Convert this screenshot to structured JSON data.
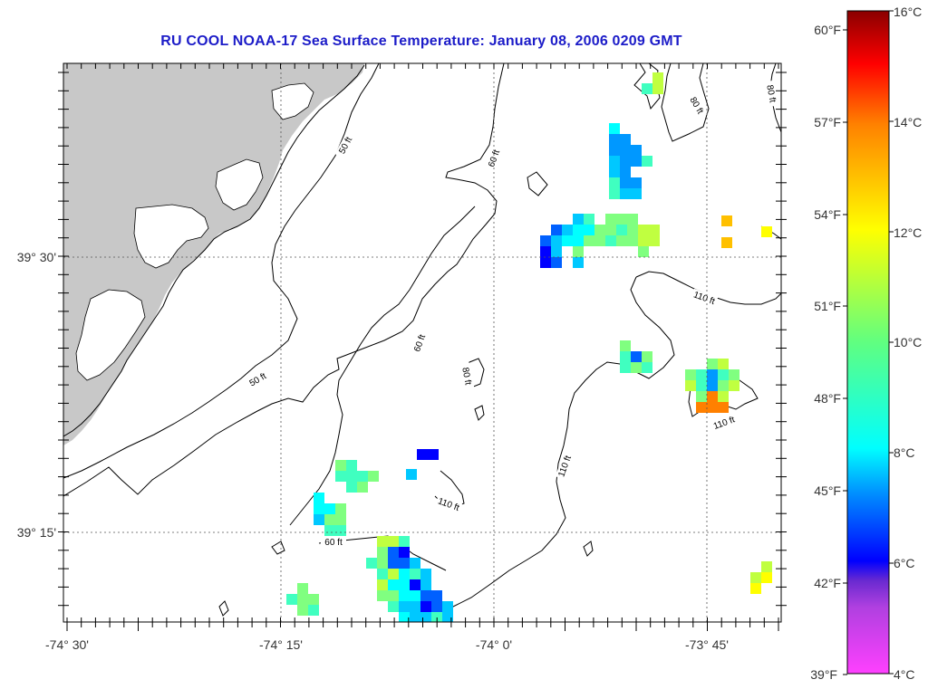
{
  "title": "RU COOL  NOAA-17  Sea Surface Temperature:  January 08, 2006 0209 GMT",
  "axes": {
    "x_ticks": [
      "-74° 30'",
      "-74° 15'",
      "-74° 0'",
      "-73° 45'"
    ],
    "y_ticks": [
      "39° 30'",
      "39° 15'"
    ]
  },
  "contours": {
    "labels": [
      "50 ft",
      "50 ft",
      "60 ft",
      "60 ft",
      "60 ft",
      "80 ft",
      "80 ft",
      "80 ft",
      "110 ft",
      "110 ft",
      "110 ft",
      "110 ft",
      "110 ft"
    ]
  },
  "colorbar": {
    "fahrenheit_labels": [
      "60°F",
      "57°F",
      "54°F",
      "51°F",
      "48°F",
      "45°F",
      "42°F",
      "39°F"
    ],
    "celsius_labels": [
      "16°C",
      "14°C",
      "12°C",
      "10°C",
      "8°C",
      "6°C",
      "4°C"
    ],
    "range_celsius": [
      4,
      16
    ]
  },
  "colors": {
    "title": "#1c1cc8",
    "land": "#c8c8c8",
    "colorbar_stops": [
      "#ff40ff",
      "#b040e0",
      "#7030d0",
      "#0000ff",
      "#00a0ff",
      "#00ffff",
      "#80ff80",
      "#ffff00",
      "#ff8000",
      "#ff0000",
      "#900000"
    ]
  }
}
